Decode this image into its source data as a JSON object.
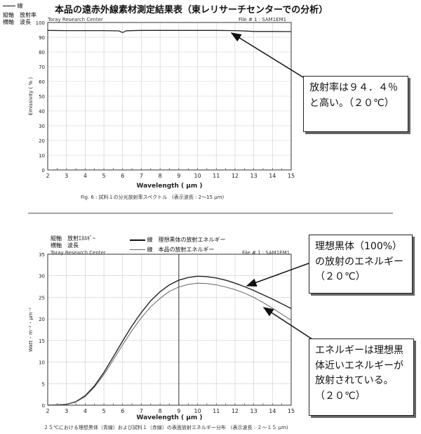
{
  "page": {
    "title": "本品の遠赤外線素材測定結果表（東レリサーチセンターでの分析）",
    "legend_line_key": "線",
    "top_axes_key": [
      "縦軸　放射率",
      "横軸　波長"
    ],
    "top_source": "Toray Research Center",
    "top_file": "File # 1 : SAM1EM1",
    "top_caption": "Fig. 6 : 試料１の分光放射率スペクトル　(表示波長 : 2～15 μm)",
    "bottom_axes_key": [
      "縦軸　放射ｴﾈﾙｷﾞｰ",
      "横軸　波長"
    ],
    "bottom_legend": [
      "線　理想黒体の放射エネルギー",
      "線　本品の放射エネルギー"
    ],
    "bottom_source": "Toray Research Center",
    "bottom_file": "File # 1 : SAM1EM1",
    "bottom_caption": "２５℃における理想黒体（青線）および試料１（赤線）の表面放射エネルギー分布　(表示波長 : ２～１５ μm)"
  },
  "callouts": {
    "emissivity": "放射率は９４．４％と高い。（２０℃）",
    "blackbody": "理想黒体（100%）の放射のエネルギー　（２０℃）",
    "sample": "エネルギーは理想黒体近いエネルギーが放射されている。（２０℃）"
  },
  "chart_data": [
    {
      "type": "line",
      "xlabel": "Wavelength ( μm )",
      "ylabel": "Emissivity ( % )",
      "xlim": [
        2,
        15
      ],
      "ylim": [
        0,
        100
      ],
      "xticks": [
        2,
        3,
        4,
        5,
        6,
        7,
        8,
        9,
        10,
        11,
        12,
        13,
        14,
        15
      ],
      "yticks": [
        0,
        10,
        20,
        30,
        40,
        50,
        60,
        70,
        80,
        90,
        100
      ],
      "grid": true,
      "series": [
        {
          "x": [
            2,
            3,
            4,
            5,
            5.8,
            6,
            6.2,
            7,
            8,
            9,
            10,
            11,
            12,
            12.6,
            13,
            14,
            15
          ],
          "values": [
            94.6,
            94.5,
            94.5,
            94.5,
            94.3,
            93.2,
            94.4,
            94.6,
            94.6,
            94.6,
            94.6,
            94.6,
            94.5,
            94.2,
            93.9,
            93.9,
            93.8
          ]
        }
      ]
    },
    {
      "type": "line",
      "xlabel": "Wavelength ( μm )",
      "ylabel": "Watt ･ m⁻² ･ μm⁻¹",
      "xlim": [
        2,
        15
      ],
      "ylim": [
        0,
        35
      ],
      "xticks": [
        2,
        3,
        4,
        5,
        6,
        7,
        8,
        9,
        10,
        11,
        12,
        13,
        14,
        15
      ],
      "yticks": [
        0,
        5,
        10,
        15,
        20,
        25,
        30,
        35
      ],
      "grid": true,
      "series": [
        {
          "name": "理想黒体の放射エネルギー",
          "x": [
            2,
            3,
            3.5,
            4,
            4.5,
            5,
            5.5,
            6,
            6.5,
            7,
            7.5,
            8,
            8.5,
            9,
            9.5,
            10,
            10.5,
            11,
            11.5,
            12,
            12.5,
            13,
            13.5,
            14,
            14.5,
            15
          ],
          "values": [
            0,
            0.2,
            0.8,
            2.2,
            4.5,
            7.6,
            11.2,
            14.9,
            18.4,
            21.5,
            24.2,
            26.3,
            27.9,
            29.0,
            29.6,
            29.9,
            29.8,
            29.5,
            29.0,
            28.3,
            27.5,
            26.6,
            25.6,
            24.6,
            23.5,
            22.4
          ]
        },
        {
          "name": "本品の放射エネルギー",
          "x": [
            2,
            3,
            3.5,
            4,
            4.5,
            5,
            5.5,
            6,
            6.5,
            7,
            7.5,
            8,
            8.5,
            9,
            9.5,
            10,
            10.5,
            11,
            11.5,
            12,
            12.5,
            13,
            13.5,
            14,
            14.5,
            15
          ],
          "values": [
            0,
            0.2,
            0.7,
            2.0,
            4.2,
            7.1,
            10.5,
            14.0,
            17.3,
            20.3,
            22.8,
            24.8,
            26.4,
            27.4,
            28.0,
            28.3,
            28.2,
            27.9,
            27.4,
            26.8,
            26.0,
            25.0,
            23.8,
            22.5,
            21.1,
            19.7
          ]
        }
      ]
    }
  ]
}
